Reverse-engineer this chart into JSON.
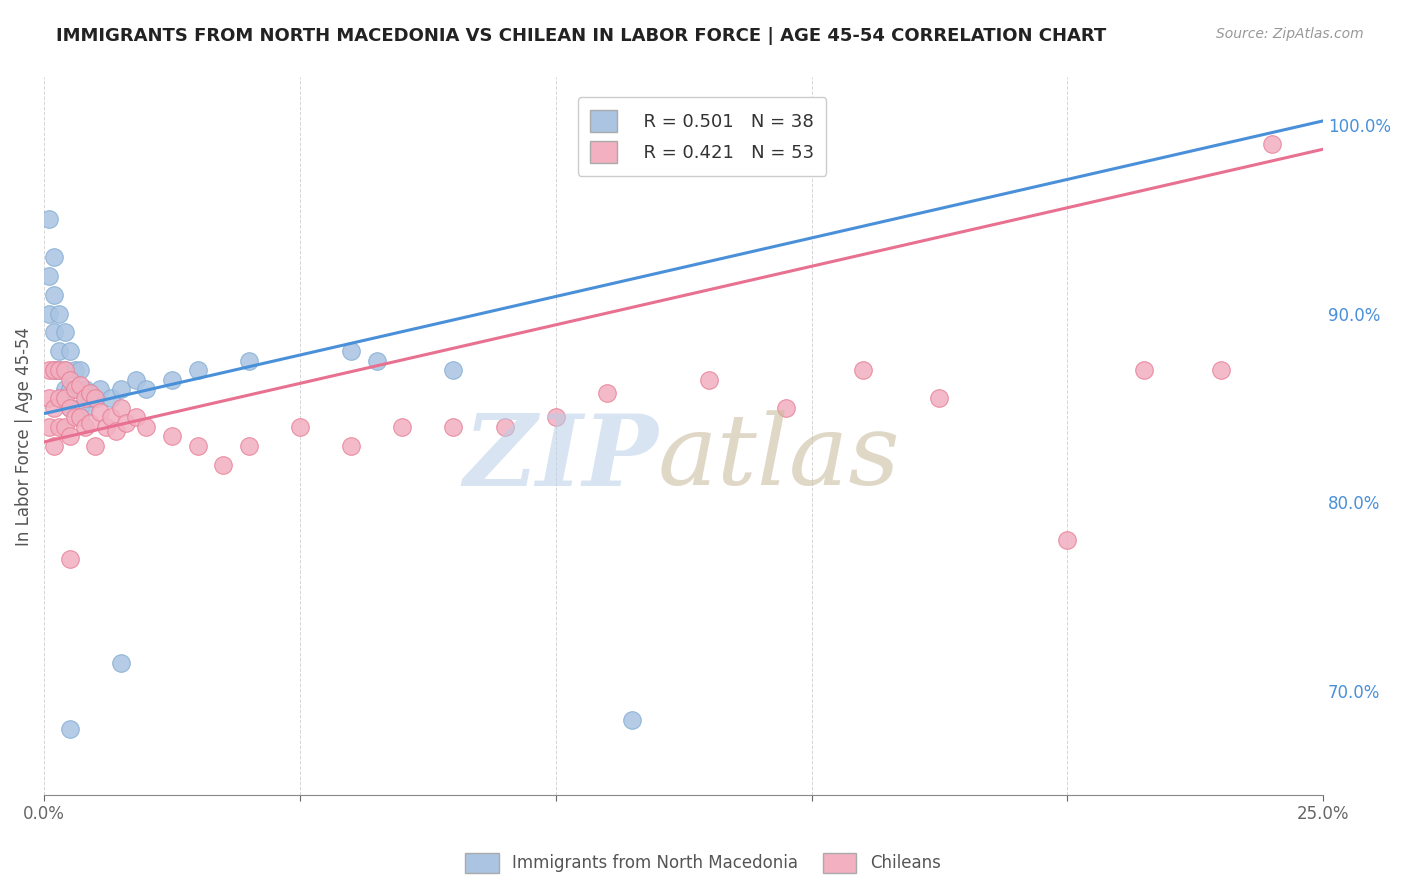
{
  "title": "IMMIGRANTS FROM NORTH MACEDONIA VS CHILEAN IN LABOR FORCE | AGE 45-54 CORRELATION CHART",
  "source": "Source: ZipAtlas.com",
  "ylabel": "In Labor Force | Age 45-54",
  "xlim": [
    0.0,
    0.25
  ],
  "ylim": [
    0.645,
    1.025
  ],
  "xticks": [
    0.0,
    0.05,
    0.1,
    0.15,
    0.2,
    0.25
  ],
  "xticklabels": [
    "0.0%",
    "",
    "",
    "",
    "",
    "25.0%"
  ],
  "yticks_right": [
    0.7,
    0.8,
    0.9,
    1.0
  ],
  "ytick_right_labels": [
    "70.0%",
    "80.0%",
    "90.0%",
    "100.0%"
  ],
  "legend_r1": "R = 0.501",
  "legend_n1": "N = 38",
  "legend_r2": "R = 0.421",
  "legend_n2": "N = 53",
  "blue_color": "#aac4e2",
  "blue_edge": "#85aed4",
  "pink_color": "#f2b0c0",
  "pink_edge": "#e88098",
  "trend_blue": "#4a90d9",
  "trend_pink": "#e87090",
  "background": "#ffffff",
  "grid_color": "#cccccc",
  "blue_x": [
    0.001,
    0.001,
    0.001,
    0.002,
    0.002,
    0.002,
    0.002,
    0.003,
    0.003,
    0.003,
    0.004,
    0.004,
    0.004,
    0.005,
    0.005,
    0.005,
    0.006,
    0.006,
    0.007,
    0.007,
    0.008,
    0.008,
    0.009,
    0.01,
    0.011,
    0.013,
    0.015,
    0.018,
    0.02,
    0.025,
    0.03,
    0.04,
    0.06,
    0.065,
    0.08,
    0.115,
    0.005,
    0.015
  ],
  "blue_y": [
    0.95,
    0.92,
    0.9,
    0.93,
    0.91,
    0.89,
    0.87,
    0.9,
    0.88,
    0.87,
    0.89,
    0.87,
    0.86,
    0.88,
    0.86,
    0.85,
    0.87,
    0.86,
    0.87,
    0.85,
    0.86,
    0.85,
    0.855,
    0.855,
    0.86,
    0.855,
    0.86,
    0.865,
    0.86,
    0.865,
    0.87,
    0.875,
    0.88,
    0.875,
    0.87,
    0.685,
    0.68,
    0.715
  ],
  "pink_x": [
    0.001,
    0.001,
    0.001,
    0.002,
    0.002,
    0.002,
    0.003,
    0.003,
    0.003,
    0.004,
    0.004,
    0.004,
    0.005,
    0.005,
    0.005,
    0.006,
    0.006,
    0.007,
    0.007,
    0.008,
    0.008,
    0.009,
    0.009,
    0.01,
    0.011,
    0.012,
    0.013,
    0.014,
    0.015,
    0.016,
    0.018,
    0.02,
    0.025,
    0.03,
    0.035,
    0.04,
    0.05,
    0.06,
    0.07,
    0.08,
    0.09,
    0.1,
    0.11,
    0.13,
    0.145,
    0.16,
    0.175,
    0.2,
    0.215,
    0.23,
    0.24,
    0.005,
    0.01
  ],
  "pink_y": [
    0.87,
    0.855,
    0.84,
    0.87,
    0.85,
    0.83,
    0.87,
    0.855,
    0.84,
    0.87,
    0.855,
    0.84,
    0.865,
    0.85,
    0.835,
    0.86,
    0.845,
    0.862,
    0.845,
    0.855,
    0.84,
    0.858,
    0.842,
    0.855,
    0.848,
    0.84,
    0.845,
    0.838,
    0.85,
    0.842,
    0.845,
    0.84,
    0.835,
    0.83,
    0.82,
    0.83,
    0.84,
    0.83,
    0.84,
    0.84,
    0.84,
    0.845,
    0.858,
    0.865,
    0.85,
    0.87,
    0.855,
    0.78,
    0.87,
    0.87,
    0.99,
    0.77,
    0.83
  ]
}
